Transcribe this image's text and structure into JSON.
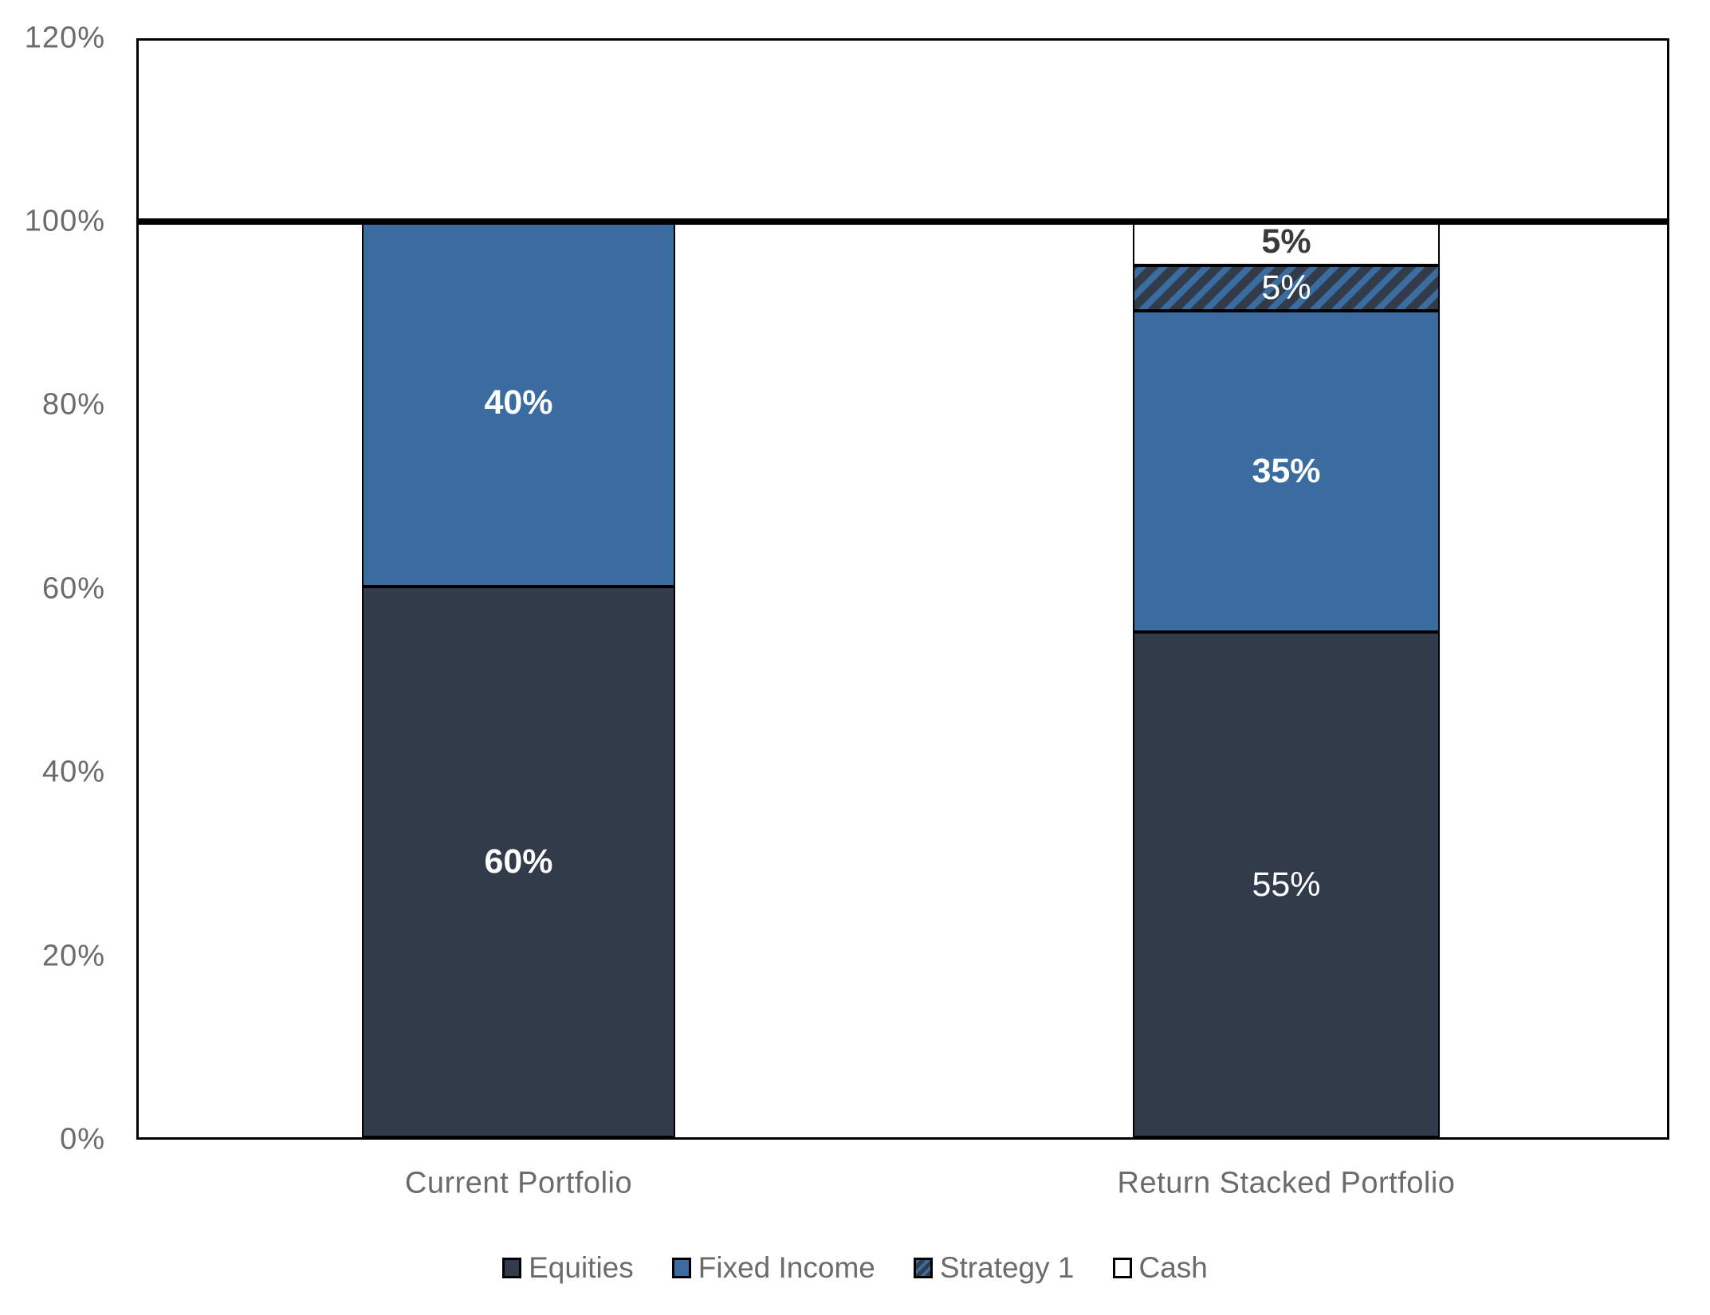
{
  "chart_data": {
    "type": "bar",
    "subtype": "stacked-column",
    "title": "",
    "xlabel": "",
    "ylabel": "",
    "categories": [
      "Current Portfolio",
      "Return Stacked Portfolio"
    ],
    "yticks": [
      "0%",
      "20%",
      "40%",
      "60%",
      "80%",
      "100%",
      "120%"
    ],
    "ylim": [
      0,
      120
    ],
    "grid": false,
    "legend_position": "bottom",
    "reference_line": {
      "value": 100,
      "color": "#000000"
    },
    "colors": {
      "equities": "#323B49",
      "fixed_income": "#3A6C9F",
      "cash": "#FFFFFF",
      "axis_text": "#6B6B6B",
      "dark_label_text": "#3B3B3B",
      "border": "#000000"
    },
    "series": [
      {
        "name": "Equities",
        "values": [
          60,
          55
        ],
        "fill": "#323B49",
        "pattern": "solid",
        "labels": [
          {
            "text": "60%",
            "color": "#FFFFFF",
            "bold": true
          },
          {
            "text": "55%",
            "color": "#FFFFFF",
            "bold": false
          }
        ]
      },
      {
        "name": "Fixed Income",
        "values": [
          40,
          35
        ],
        "fill": "#3A6C9F",
        "pattern": "solid",
        "labels": [
          {
            "text": "40%",
            "color": "#FFFFFF",
            "bold": true
          },
          {
            "text": "35%",
            "color": "#FFFFFF",
            "bold": true
          }
        ]
      },
      {
        "name": "Strategy 1",
        "values": [
          0,
          5
        ],
        "fill": "#323B49",
        "pattern": "diagonal-hatch",
        "hatch_color": "#3A6C9F",
        "labels": [
          null,
          {
            "text": "5%",
            "color": "#FFFFFF",
            "bold": false
          }
        ]
      },
      {
        "name": "Cash",
        "values": [
          0,
          5
        ],
        "fill": "#FFFFFF",
        "pattern": "solid",
        "labels": [
          null,
          {
            "text": "5%",
            "color": "#3B3B3B",
            "bold": true
          }
        ]
      }
    ]
  }
}
